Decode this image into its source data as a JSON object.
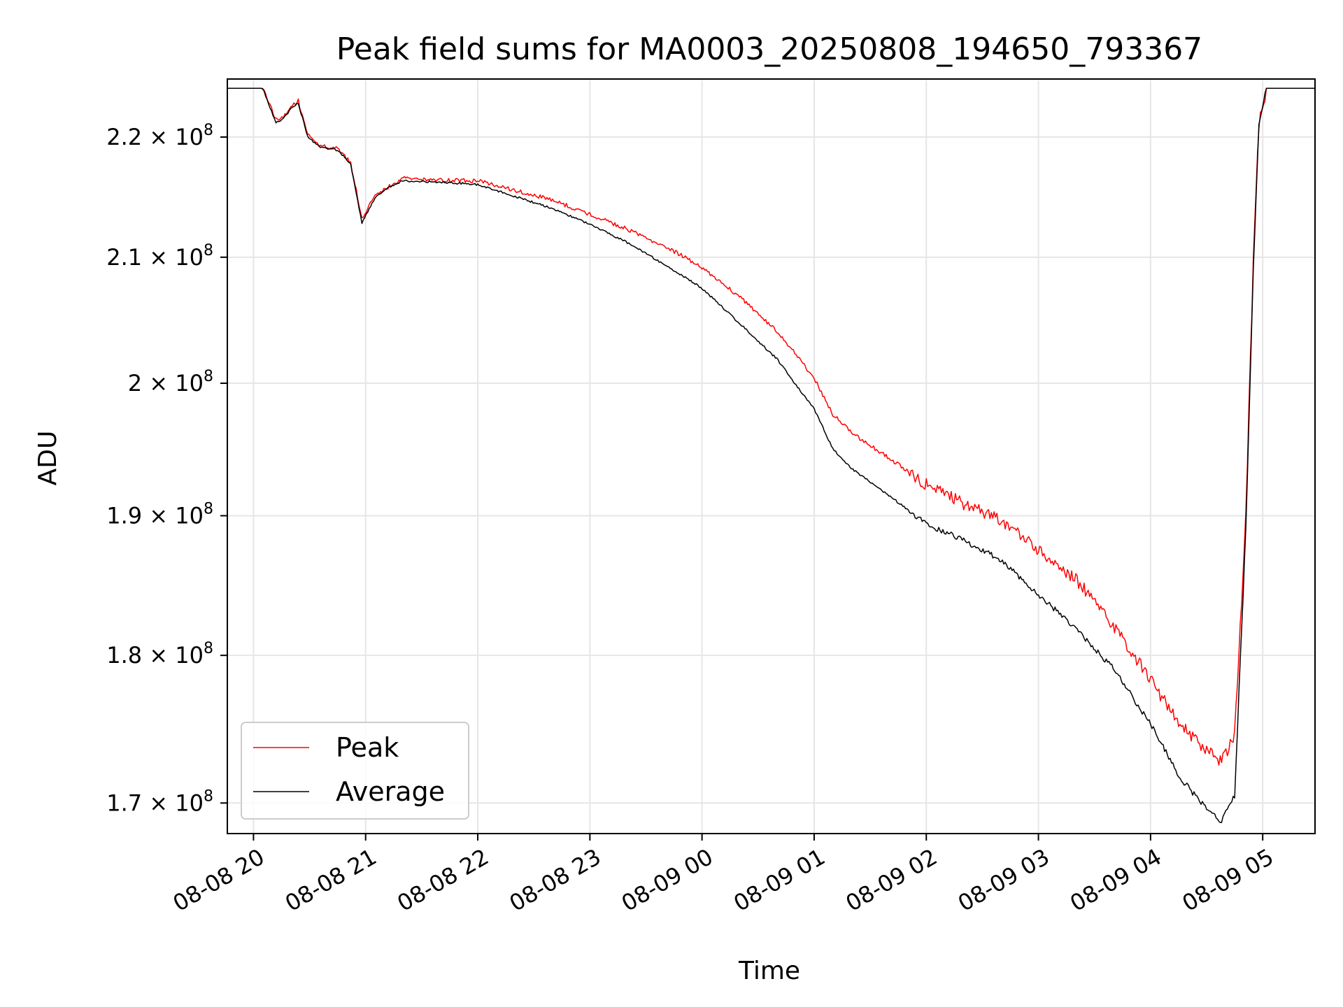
{
  "chart_data": {
    "type": "line",
    "title": "Peak field sums for MA0003_20250808_194650_793367",
    "xlabel": "Time",
    "ylabel": "ADU",
    "y_scale": "log",
    "xlim": [
      "2025-08-08 19:46",
      "2025-08-09 05:28"
    ],
    "ylim": [
      168000000,
      225000000
    ],
    "x_ticks": [
      {
        "t": "2025-08-08 20:00",
        "label": "08-08 20"
      },
      {
        "t": "2025-08-08 21:00",
        "label": "08-08 21"
      },
      {
        "t": "2025-08-08 22:00",
        "label": "08-08 22"
      },
      {
        "t": "2025-08-08 23:00",
        "label": "08-08 23"
      },
      {
        "t": "2025-08-09 00:00",
        "label": "08-09 00"
      },
      {
        "t": "2025-08-09 01:00",
        "label": "08-09 01"
      },
      {
        "t": "2025-08-09 02:00",
        "label": "08-09 02"
      },
      {
        "t": "2025-08-09 03:00",
        "label": "08-09 03"
      },
      {
        "t": "2025-08-09 04:00",
        "label": "08-09 04"
      },
      {
        "t": "2025-08-09 05:00",
        "label": "08-09 05"
      }
    ],
    "y_ticks": [
      {
        "value": 220000000,
        "mantissa": "2.2",
        "exponent": "8"
      },
      {
        "value": 210000000,
        "mantissa": "2.1",
        "exponent": "8"
      },
      {
        "value": 200000000,
        "mantissa": "2",
        "exponent": "8"
      },
      {
        "value": 190000000,
        "mantissa": "1.9",
        "exponent": "8"
      },
      {
        "value": 180000000,
        "mantissa": "1.8",
        "exponent": "8"
      },
      {
        "value": 170000000,
        "mantissa": "1.7",
        "exponent": "8"
      }
    ],
    "grid": true,
    "legend": {
      "position": "lower-left",
      "entries": [
        "Peak",
        "Average"
      ]
    },
    "series": [
      {
        "name": "Peak",
        "color": "#ff0000",
        "points": [
          [
            "2025-08-08 19:46",
            224200000
          ],
          [
            "2025-08-08 20:05",
            224200000
          ],
          [
            "2025-08-08 20:12",
            221500000
          ],
          [
            "2025-08-08 20:16",
            221800000
          ],
          [
            "2025-08-08 20:20",
            222600000
          ],
          [
            "2025-08-08 20:24",
            223100000
          ],
          [
            "2025-08-08 20:29",
            220200000
          ],
          [
            "2025-08-08 20:35",
            219300000
          ],
          [
            "2025-08-08 20:45",
            219000000
          ],
          [
            "2025-08-08 20:52",
            217800000
          ],
          [
            "2025-08-08 20:58",
            213200000
          ],
          [
            "2025-08-08 21:05",
            215100000
          ],
          [
            "2025-08-08 21:12",
            215800000
          ],
          [
            "2025-08-08 21:20",
            216500000
          ],
          [
            "2025-08-08 21:40",
            216400000
          ],
          [
            "2025-08-08 22:00",
            216300000
          ],
          [
            "2025-08-08 22:20",
            215500000
          ],
          [
            "2025-08-08 22:40",
            214700000
          ],
          [
            "2025-08-08 23:00",
            213500000
          ],
          [
            "2025-08-08 23:20",
            212300000
          ],
          [
            "2025-08-08 23:40",
            210900000
          ],
          [
            "2025-08-09 00:00",
            209200000
          ],
          [
            "2025-08-09 00:20",
            206800000
          ],
          [
            "2025-08-09 00:40",
            204100000
          ],
          [
            "2025-08-09 01:00",
            200400000
          ],
          [
            "2025-08-09 01:10",
            197600000
          ],
          [
            "2025-08-09 01:20",
            196200000
          ],
          [
            "2025-08-09 01:40",
            194300000
          ],
          [
            "2025-08-09 02:00",
            192300000
          ],
          [
            "2025-08-09 02:20",
            190900000
          ],
          [
            "2025-08-09 02:40",
            189700000
          ],
          [
            "2025-08-09 03:00",
            187500000
          ],
          [
            "2025-08-09 03:20",
            185400000
          ],
          [
            "2025-08-09 03:40",
            182100000
          ],
          [
            "2025-08-09 04:00",
            178300000
          ],
          [
            "2025-08-09 04:15",
            175400000
          ],
          [
            "2025-08-09 04:30",
            173500000
          ],
          [
            "2025-08-09 04:38",
            172800000
          ],
          [
            "2025-08-09 04:45",
            174500000
          ],
          [
            "2025-08-09 04:51",
            190000000
          ],
          [
            "2025-08-09 04:55",
            210000000
          ],
          [
            "2025-08-09 04:58",
            221000000
          ],
          [
            "2025-08-09 05:02",
            224200000
          ],
          [
            "2025-08-09 05:28",
            224200000
          ]
        ]
      },
      {
        "name": "Average",
        "color": "#000000",
        "points": [
          [
            "2025-08-08 19:46",
            224200000
          ],
          [
            "2025-08-08 20:05",
            224200000
          ],
          [
            "2025-08-08 20:12",
            221200000
          ],
          [
            "2025-08-08 20:16",
            221600000
          ],
          [
            "2025-08-08 20:20",
            222400000
          ],
          [
            "2025-08-08 20:24",
            222900000
          ],
          [
            "2025-08-08 20:29",
            220000000
          ],
          [
            "2025-08-08 20:35",
            219200000
          ],
          [
            "2025-08-08 20:45",
            218900000
          ],
          [
            "2025-08-08 20:52",
            217700000
          ],
          [
            "2025-08-08 20:58",
            212800000
          ],
          [
            "2025-08-08 21:05",
            214900000
          ],
          [
            "2025-08-08 21:12",
            215700000
          ],
          [
            "2025-08-08 21:20",
            216300000
          ],
          [
            "2025-08-08 21:40",
            216200000
          ],
          [
            "2025-08-08 22:00",
            216000000
          ],
          [
            "2025-08-08 22:20",
            215000000
          ],
          [
            "2025-08-08 22:40",
            214000000
          ],
          [
            "2025-08-08 23:00",
            212700000
          ],
          [
            "2025-08-08 23:20",
            211200000
          ],
          [
            "2025-08-08 23:40",
            209400000
          ],
          [
            "2025-08-09 00:00",
            207500000
          ],
          [
            "2025-08-09 00:20",
            204700000
          ],
          [
            "2025-08-09 00:40",
            201900000
          ],
          [
            "2025-08-09 01:00",
            198000000
          ],
          [
            "2025-08-09 01:10",
            195000000
          ],
          [
            "2025-08-09 01:20",
            193500000
          ],
          [
            "2025-08-09 01:40",
            191500000
          ],
          [
            "2025-08-09 02:00",
            189400000
          ],
          [
            "2025-08-09 02:20",
            188200000
          ],
          [
            "2025-08-09 02:40",
            186800000
          ],
          [
            "2025-08-09 03:00",
            184300000
          ],
          [
            "2025-08-09 03:20",
            181900000
          ],
          [
            "2025-08-09 03:40",
            179100000
          ],
          [
            "2025-08-09 04:00",
            175300000
          ],
          [
            "2025-08-09 04:15",
            171800000
          ],
          [
            "2025-08-09 04:30",
            169600000
          ],
          [
            "2025-08-09 04:38",
            168800000
          ],
          [
            "2025-08-09 04:45",
            170500000
          ],
          [
            "2025-08-09 04:51",
            189000000
          ],
          [
            "2025-08-09 04:55",
            209000000
          ],
          [
            "2025-08-09 04:58",
            221000000
          ],
          [
            "2025-08-09 05:02",
            224200000
          ],
          [
            "2025-08-09 05:28",
            224200000
          ]
        ]
      }
    ]
  }
}
